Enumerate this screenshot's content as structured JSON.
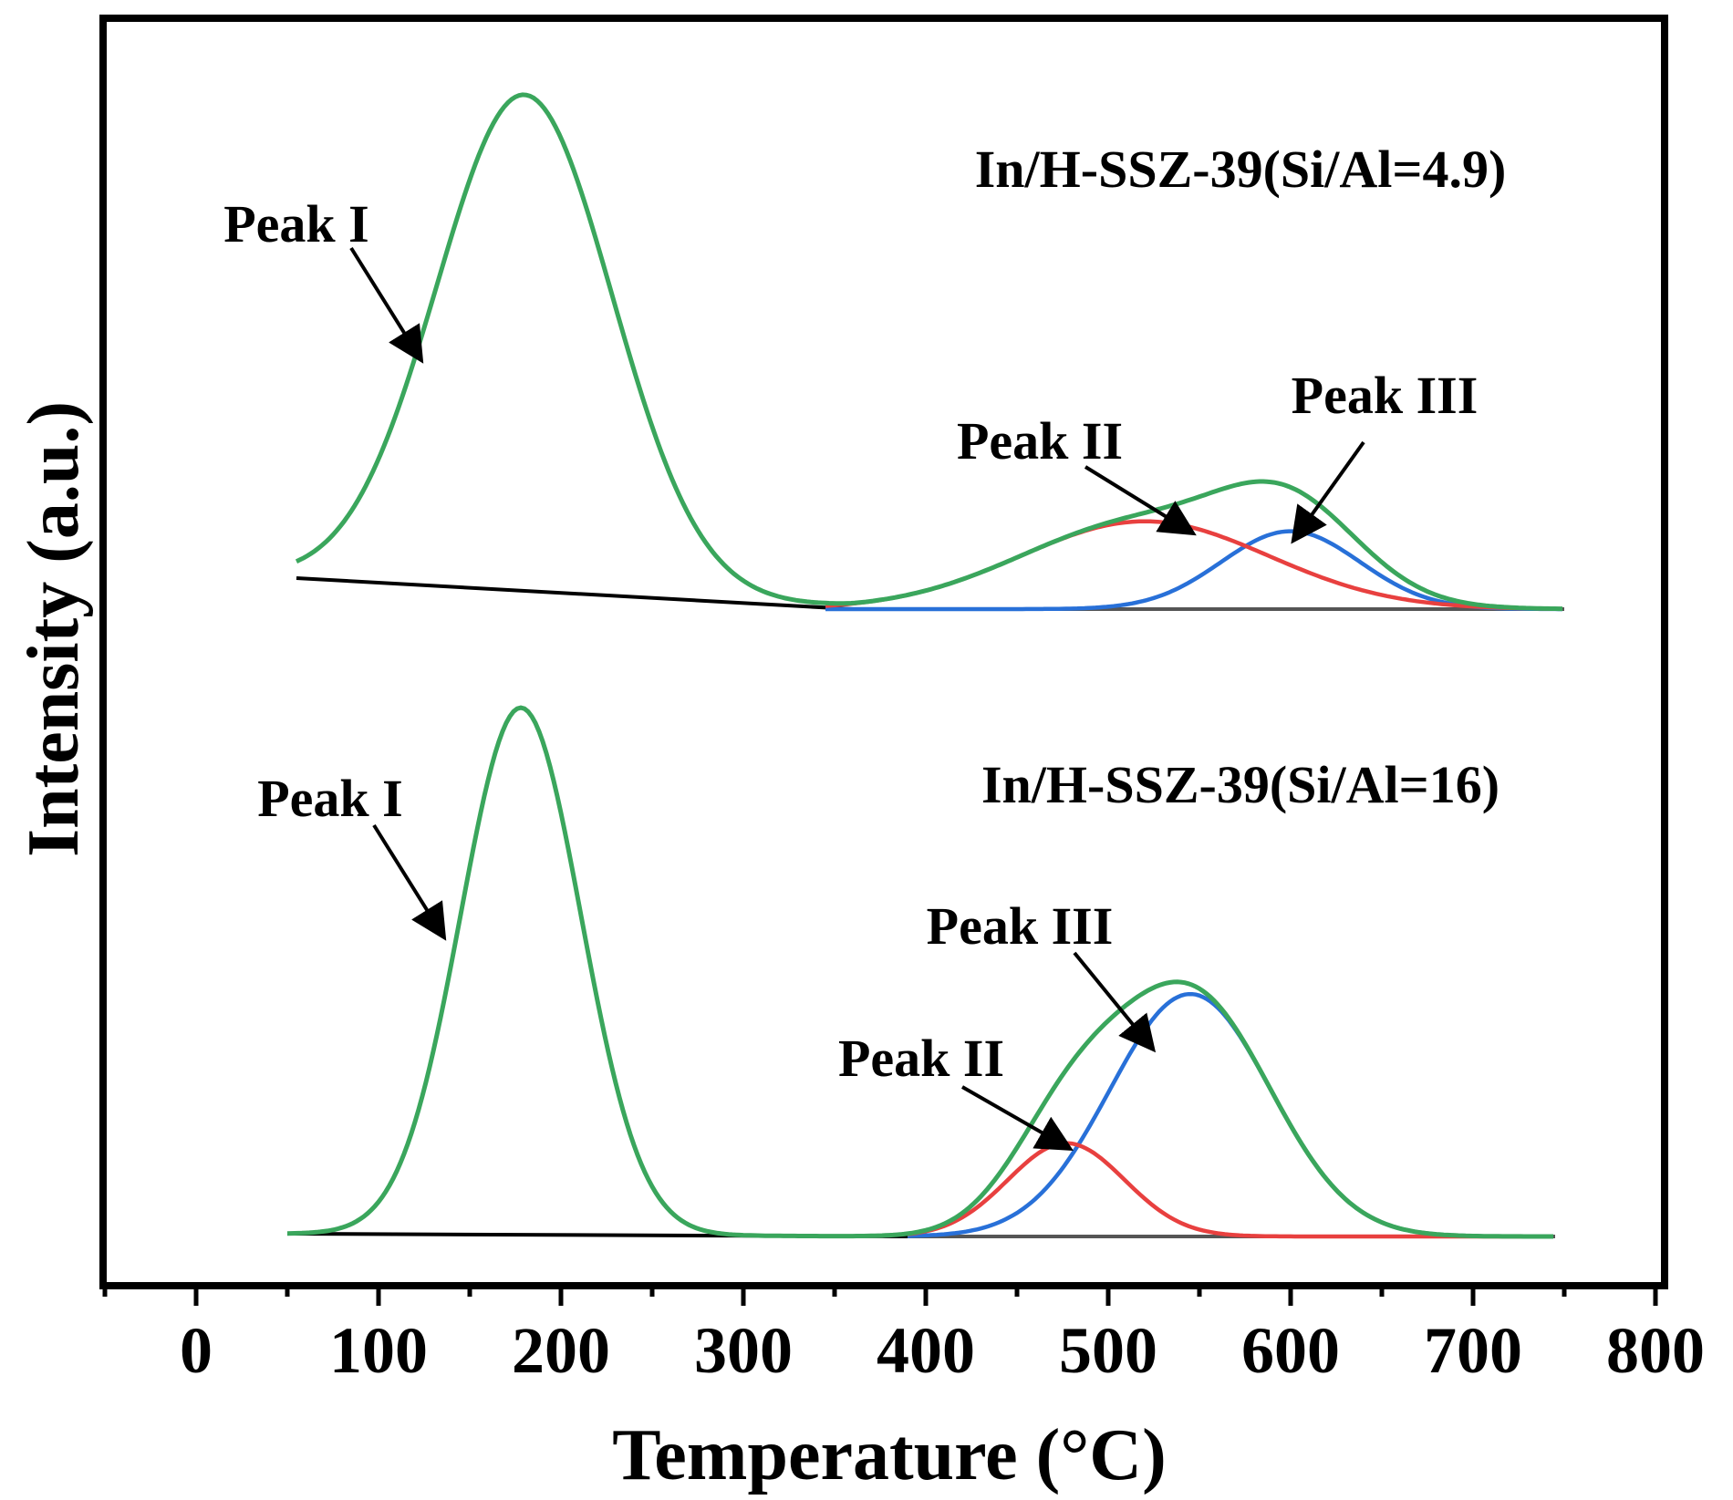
{
  "chart_data": {
    "type": "line",
    "title": "",
    "xlabel": "Temperature (°C)",
    "ylabel": "Intensity (a.u.)",
    "xlim": [
      -50,
      800
    ],
    "x_ticks": [
      0,
      100,
      200,
      300,
      400,
      500,
      600,
      700,
      800
    ],
    "x_tick_labels": [
      "0",
      "100",
      "200",
      "300",
      "400",
      "500",
      "600",
      "700",
      "800"
    ],
    "y_ticks": "none",
    "colors": {
      "envelope": "#3aa65c",
      "peak2": "#e8403f",
      "peak3": "#2870d8",
      "baseline_fit": "#000000",
      "baseline_flat": "#555555",
      "frame": "#000000"
    },
    "panels": [
      {
        "sample": "In/H-SSZ-39(Si/Al=4.9)",
        "x_range": [
          55,
          750
        ],
        "peaks": [
          {
            "name": "Peak I",
            "center": 180,
            "sigma": 48,
            "height": 1.0,
            "arrow_label": "Peak I"
          },
          {
            "name": "Peak II",
            "center": 520,
            "sigma": 68,
            "height": 0.177,
            "arrow_label": "Peak II"
          },
          {
            "name": "Peak III",
            "center": 600,
            "sigma": 38,
            "height": 0.157,
            "arrow_label": "Peak III"
          }
        ]
      },
      {
        "sample": "In/H-SSZ-39(Si/Al=16)",
        "x_range": [
          50,
          745
        ],
        "peaks": [
          {
            "name": "Peak I",
            "center": 178,
            "sigma": 33,
            "height": 1.0,
            "arrow_label": "Peak I"
          },
          {
            "name": "Peak II",
            "center": 477,
            "sigma": 32,
            "height": 0.177,
            "arrow_label": "Peak II"
          },
          {
            "name": "Peak III",
            "center": 545,
            "sigma": 44,
            "height": 0.46,
            "arrow_label": "Peak III"
          }
        ]
      }
    ]
  }
}
